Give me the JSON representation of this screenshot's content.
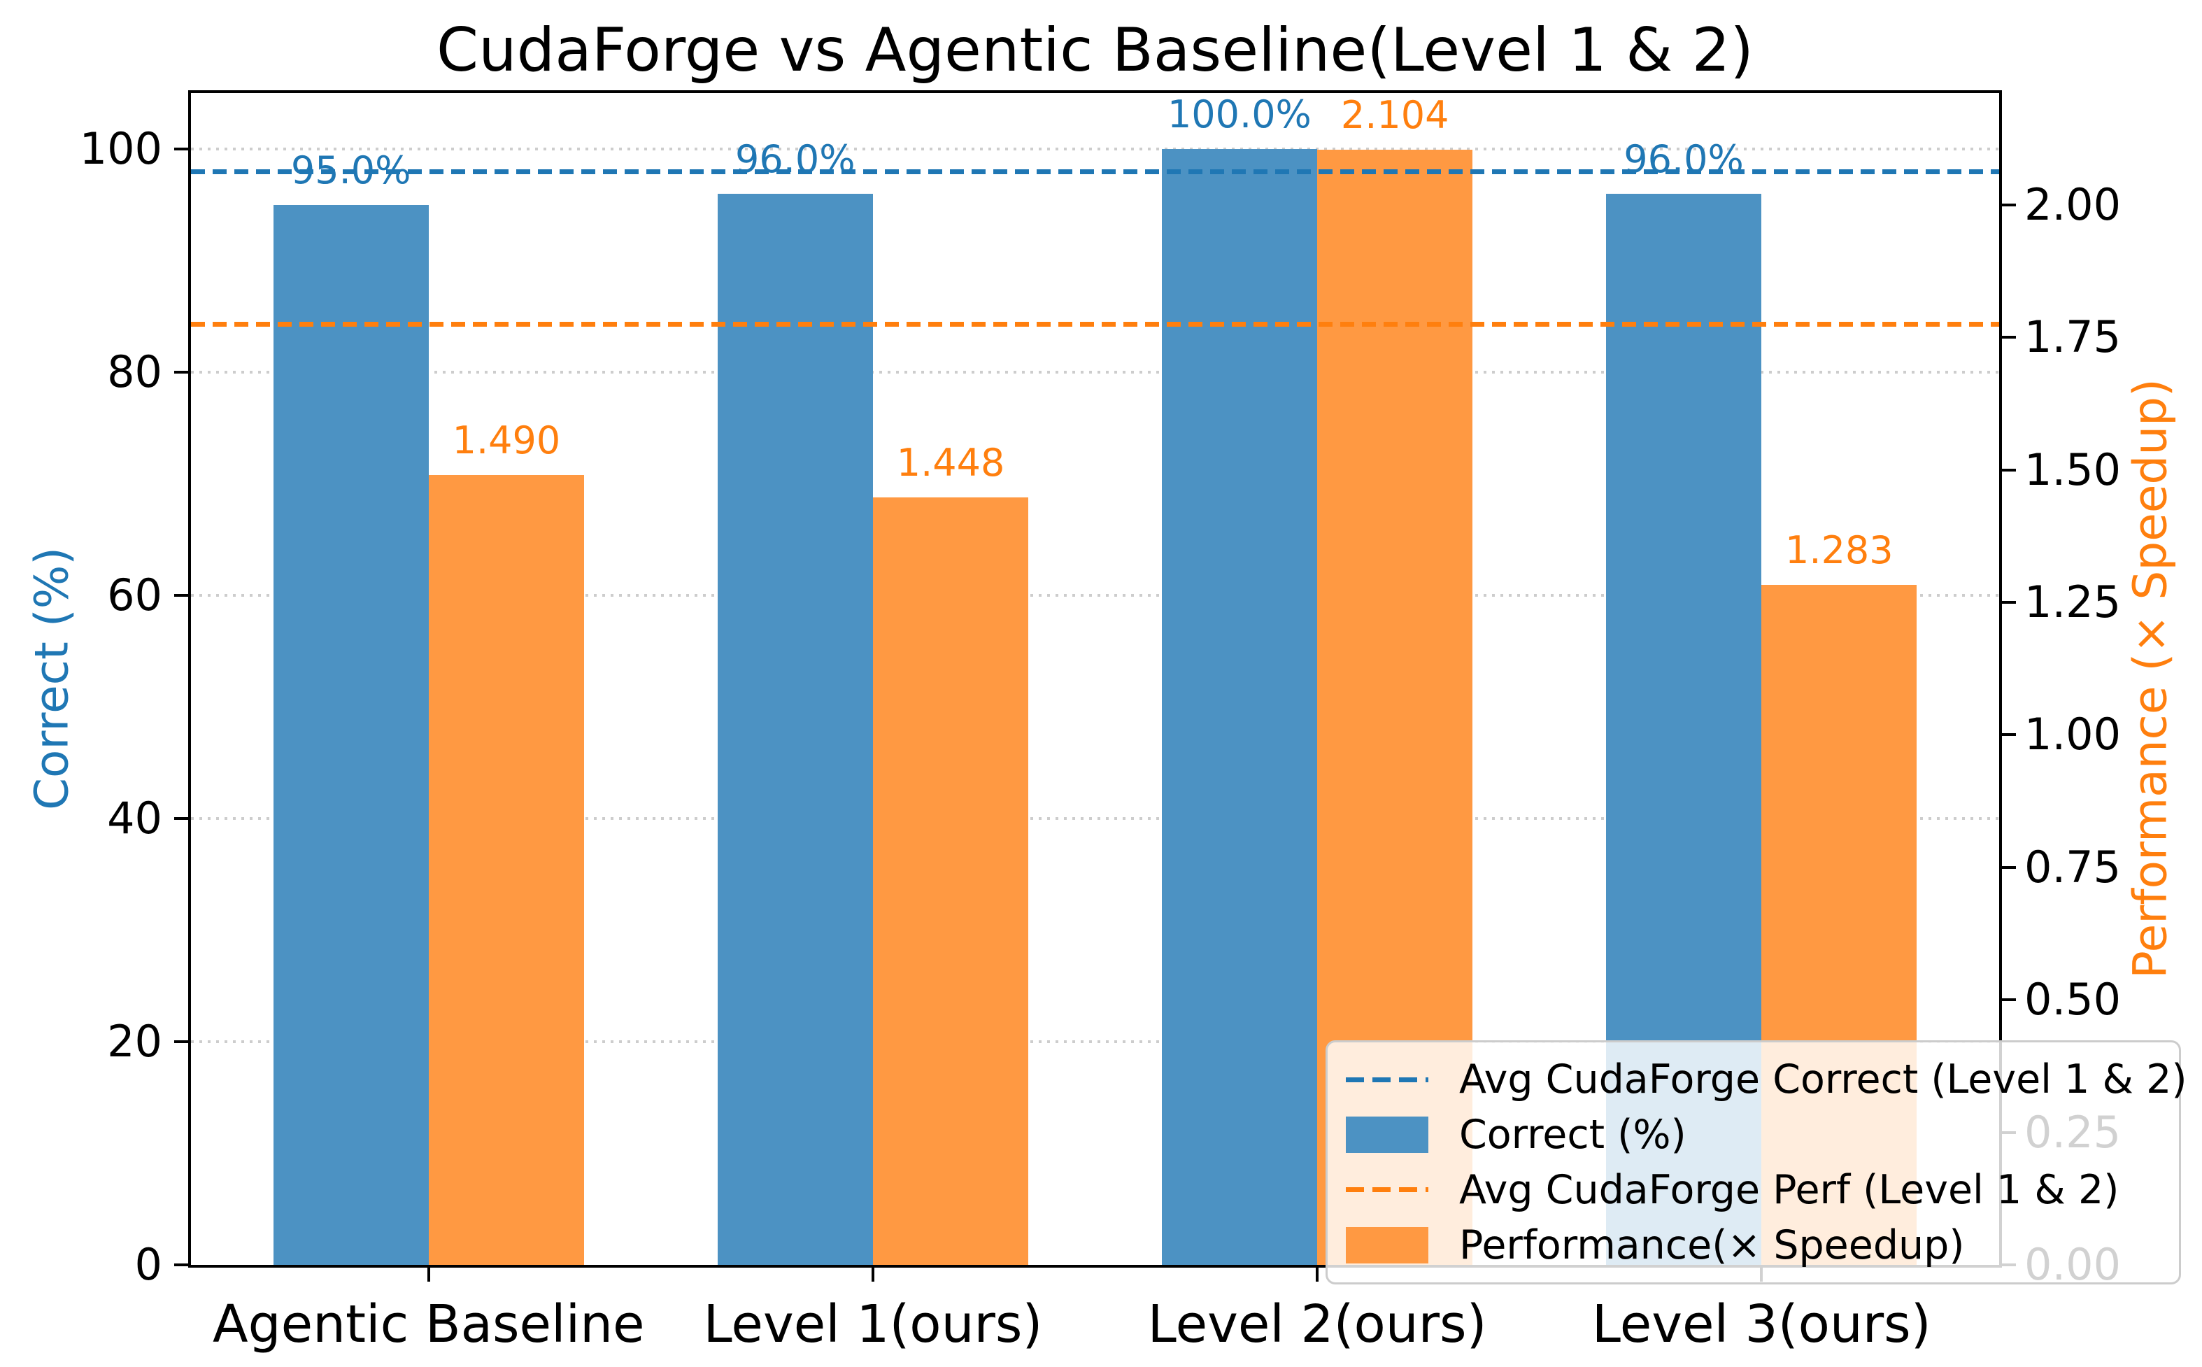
{
  "chart_data": {
    "type": "bar",
    "title": "CudaForge vs Agentic Baseline(Level 1 & 2)",
    "categories": [
      "Agentic Baseline",
      "Level 1(ours)",
      "Level 2(ours)",
      "Level 3(ours)"
    ],
    "series": [
      {
        "name": "Correct (%)",
        "axis": "left",
        "color": "#4C92C3",
        "value_label_color": "#1F77B4",
        "values": [
          95.0,
          96.0,
          100.0,
          96.0
        ],
        "value_labels": [
          "95.0%",
          "96.0%",
          "100.0%",
          "96.0%"
        ]
      },
      {
        "name": "Performance(× Speedup)",
        "axis": "right",
        "color": "#FF9942",
        "value_label_color": "#FF7F0E",
        "values": [
          1.49,
          1.448,
          2.104,
          1.283
        ],
        "value_labels": [
          "1.490",
          "1.448",
          "2.104",
          "1.283"
        ]
      }
    ],
    "reference_lines": [
      {
        "name": "Avg CudaForge Correct (Level 1 & 2)",
        "axis": "left",
        "value": 98.0,
        "color": "#1F77B4",
        "style": "dashed"
      },
      {
        "name": "Avg CudaForge Perf (Level 1 & 2)",
        "axis": "right",
        "value": 1.776,
        "color": "#FF7F0E",
        "style": "dashed"
      }
    ],
    "axes": {
      "left": {
        "label": "Correct (%)",
        "color": "#1F77B4",
        "min": 0,
        "max": 105,
        "tick_values": [
          0,
          20,
          40,
          60,
          80,
          100
        ],
        "tick_labels": [
          "0",
          "20",
          "40",
          "60",
          "80",
          "100"
        ]
      },
      "right": {
        "label": "Performance (× Speedup)",
        "color": "#FF7F0E",
        "min": 0,
        "max": 2.211,
        "tick_values": [
          0,
          0.25,
          0.5,
          0.75,
          1.0,
          1.25,
          1.5,
          1.75,
          2.0
        ],
        "tick_labels": [
          "0.00",
          "0.25",
          "0.50",
          "0.75",
          "1.00",
          "1.25",
          "1.50",
          "1.75",
          "2.00"
        ]
      }
    },
    "grid": {
      "show": true,
      "axis": "left",
      "style": "dotted",
      "color": "#CDCDCD"
    },
    "legend": {
      "position": "lower right",
      "entries": [
        {
          "label": "Avg CudaForge Correct (Level 1 & 2)",
          "marker": "dashed-line",
          "color": "#1F77B4"
        },
        {
          "label": "Correct (%)",
          "marker": "patch",
          "color": "#4C92C3"
        },
        {
          "label": "Avg CudaForge Perf (Level 1 & 2)",
          "marker": "dashed-line",
          "color": "#FF7F0E"
        },
        {
          "label": "Performance(× Speedup)",
          "marker": "patch",
          "color": "#FF9942"
        }
      ]
    },
    "bar_layout": {
      "group_count": 4,
      "bar_width_frac": 0.35,
      "x_min": -0.535,
      "x_max": 3.535
    }
  }
}
